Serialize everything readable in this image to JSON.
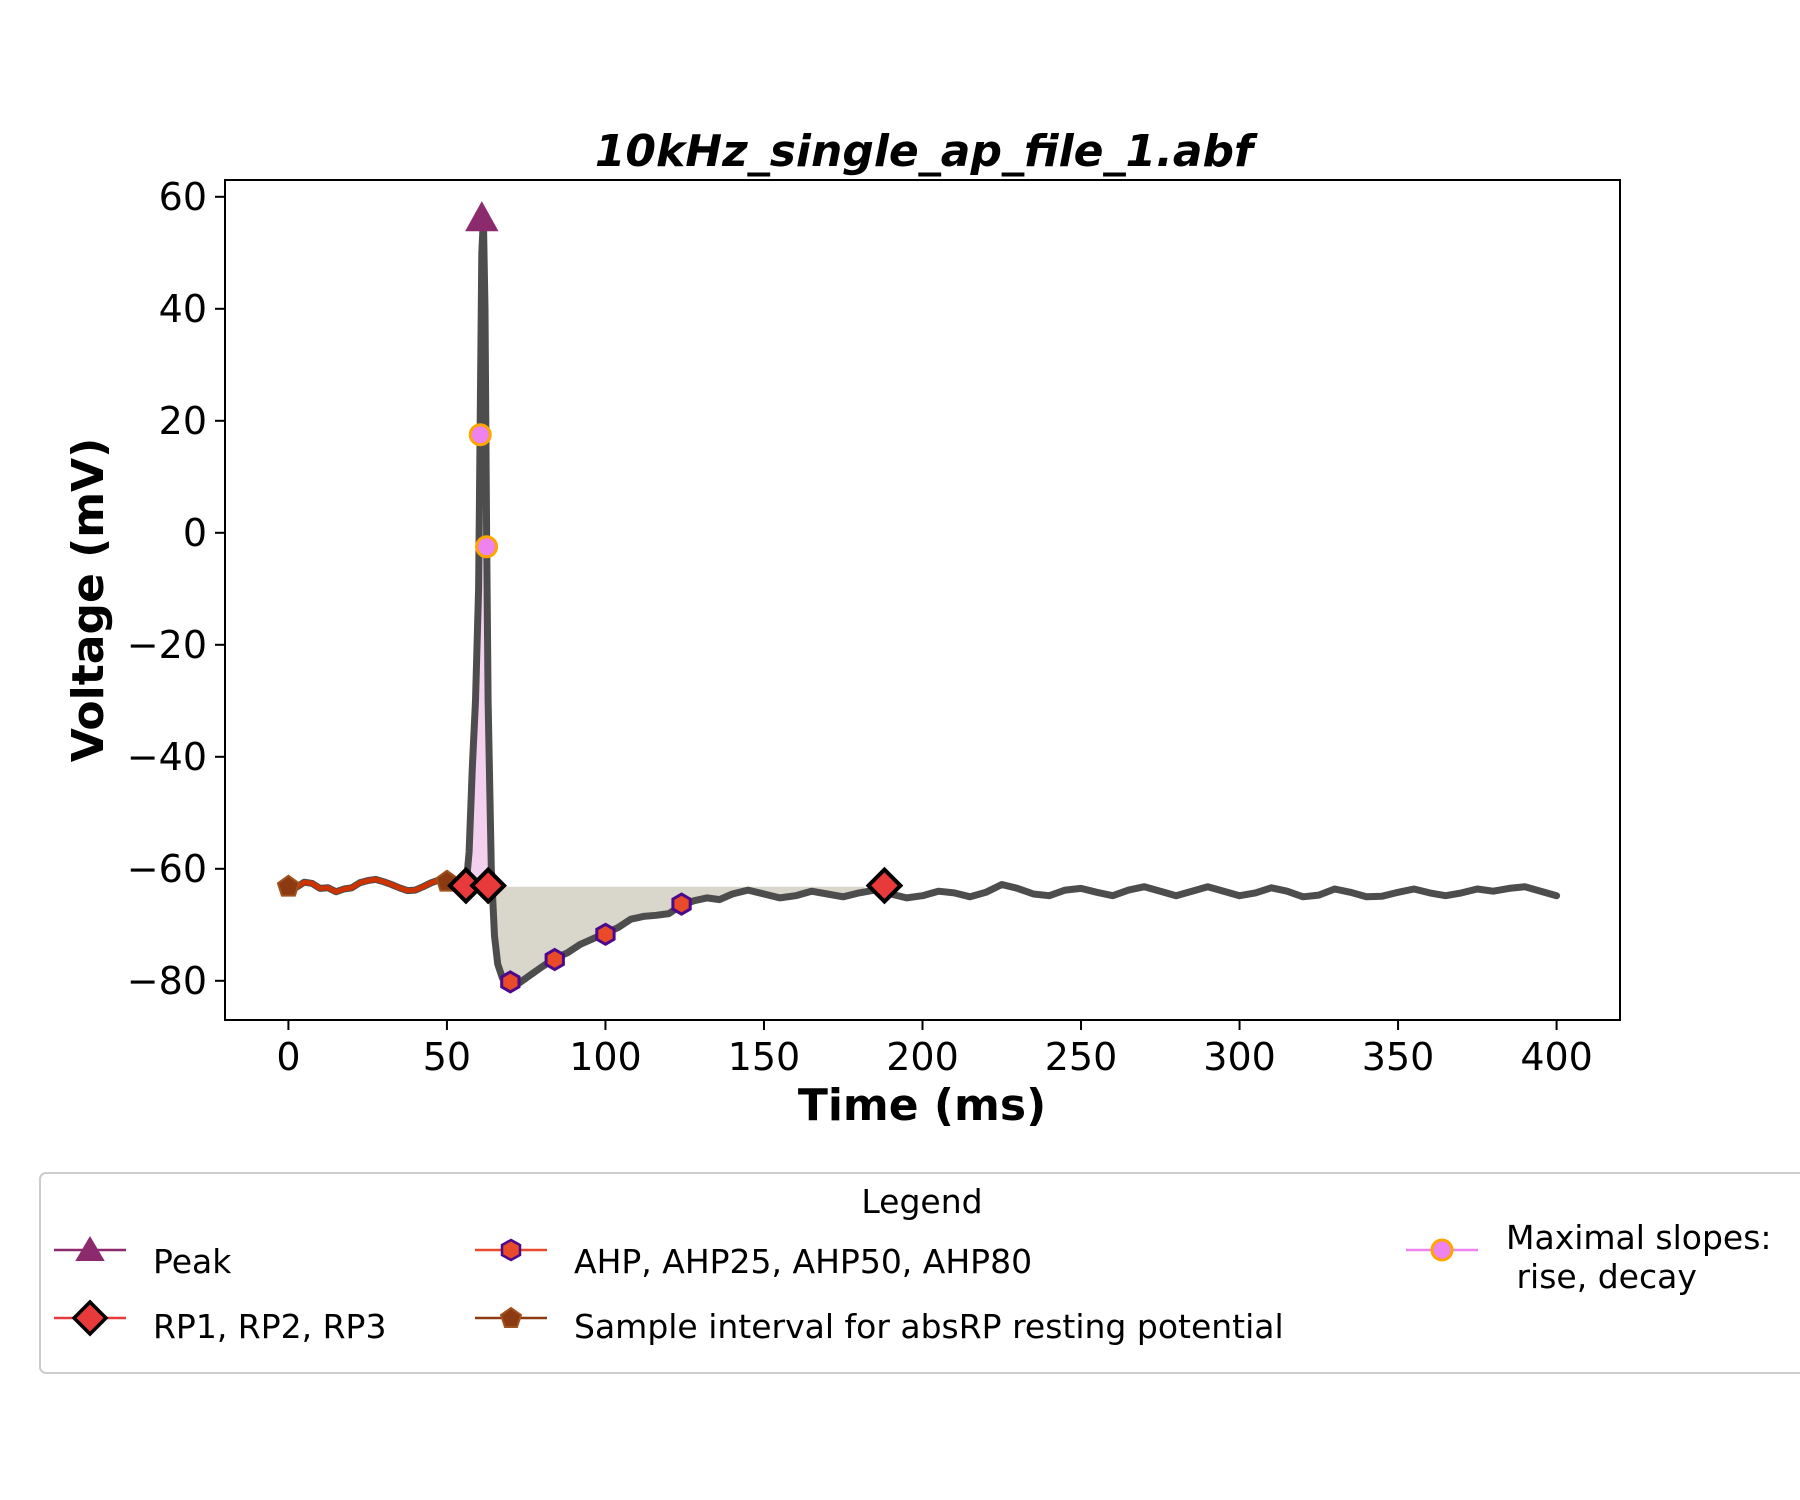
{
  "chart_data": {
    "type": "line",
    "title": "10kHz_single_ap_file_1.abf",
    "xlabel": "Time (ms)",
    "ylabel": "Voltage (mV)",
    "xlim": [
      -20,
      420
    ],
    "ylim": [
      -87,
      63
    ],
    "xticks": [
      0,
      50,
      100,
      150,
      200,
      250,
      300,
      350,
      400
    ],
    "yticks": [
      -80,
      -60,
      -40,
      -20,
      0,
      20,
      40,
      60
    ],
    "grid": false,
    "trace": {
      "color": "#4d4d4d",
      "points": [
        [
          0,
          -63.2
        ],
        [
          2.5,
          -63.3
        ],
        [
          5,
          -62.4
        ],
        [
          7.5,
          -62.6
        ],
        [
          10,
          -63.5
        ],
        [
          12.5,
          -63.4
        ],
        [
          15,
          -64.1
        ],
        [
          17.5,
          -63.6
        ],
        [
          20,
          -63.4
        ],
        [
          22.5,
          -62.5
        ],
        [
          25,
          -62.1
        ],
        [
          27.5,
          -61.9
        ],
        [
          30,
          -62.3
        ],
        [
          32.5,
          -62.8
        ],
        [
          35,
          -63.4
        ],
        [
          37.5,
          -63.9
        ],
        [
          40,
          -63.8
        ],
        [
          42.5,
          -63.2
        ],
        [
          45,
          -62.5
        ],
        [
          47.5,
          -62
        ],
        [
          50,
          -62.3
        ],
        [
          52.5,
          -62.8
        ],
        [
          55,
          -63.2
        ],
        [
          56,
          -63.2
        ],
        [
          57,
          -57
        ],
        [
          58,
          -42
        ],
        [
          59,
          -30
        ],
        [
          60,
          -10
        ],
        [
          60.5,
          20
        ],
        [
          61,
          50
        ],
        [
          61.5,
          56
        ],
        [
          62,
          40
        ],
        [
          62.5,
          0
        ],
        [
          63,
          -30
        ],
        [
          64,
          -60
        ],
        [
          65,
          -72
        ],
        [
          66,
          -77
        ],
        [
          67.5,
          -79.5
        ],
        [
          70,
          -80.5
        ],
        [
          72.5,
          -80.5
        ],
        [
          75,
          -79.5
        ],
        [
          77.5,
          -78.5
        ],
        [
          80,
          -77.5
        ],
        [
          84,
          -76
        ],
        [
          88,
          -75
        ],
        [
          92,
          -73.5
        ],
        [
          96,
          -72.5
        ],
        [
          100,
          -71.5
        ],
        [
          104,
          -70.5
        ],
        [
          108,
          -69
        ],
        [
          112,
          -68.5
        ],
        [
          116,
          -68.3
        ],
        [
          120,
          -68
        ],
        [
          124,
          -66.5
        ],
        [
          128,
          -65.7
        ],
        [
          132,
          -65.2
        ],
        [
          136,
          -65.5
        ],
        [
          140,
          -64.5
        ],
        [
          145,
          -63.8
        ],
        [
          150,
          -64.5
        ],
        [
          155,
          -65.2
        ],
        [
          160,
          -64.8
        ],
        [
          165,
          -64
        ],
        [
          170,
          -64.5
        ],
        [
          175,
          -65
        ],
        [
          180,
          -64.3
        ],
        [
          185,
          -63.8
        ],
        [
          190,
          -64.5
        ],
        [
          195,
          -65.2
        ],
        [
          200,
          -64.8
        ],
        [
          205,
          -64
        ],
        [
          210,
          -64.3
        ],
        [
          215,
          -65
        ],
        [
          220,
          -64.2
        ],
        [
          225,
          -62.8
        ],
        [
          230,
          -63.5
        ],
        [
          235,
          -64.5
        ],
        [
          240,
          -64.8
        ],
        [
          245,
          -63.8
        ],
        [
          250,
          -63.5
        ],
        [
          255,
          -64.2
        ],
        [
          260,
          -64.8
        ],
        [
          265,
          -63.8
        ],
        [
          270,
          -63.2
        ],
        [
          275,
          -64
        ],
        [
          280,
          -64.8
        ],
        [
          285,
          -64
        ],
        [
          290,
          -63.2
        ],
        [
          295,
          -64
        ],
        [
          300,
          -64.8
        ],
        [
          305,
          -64.3
        ],
        [
          310,
          -63.4
        ],
        [
          315,
          -64
        ],
        [
          320,
          -65
        ],
        [
          325,
          -64.7
        ],
        [
          330,
          -63.6
        ],
        [
          335,
          -64.2
        ],
        [
          340,
          -65
        ],
        [
          345,
          -64.9
        ],
        [
          350,
          -64.2
        ],
        [
          355,
          -63.6
        ],
        [
          360,
          -64.3
        ],
        [
          365,
          -64.8
        ],
        [
          370,
          -64.3
        ],
        [
          375,
          -63.6
        ],
        [
          380,
          -64
        ],
        [
          385,
          -63.5
        ],
        [
          390,
          -63.2
        ],
        [
          395,
          -64
        ],
        [
          400,
          -64.8
        ]
      ]
    },
    "resting_interval": {
      "color": "#cc3300",
      "x_start": 0,
      "x_end": 50
    },
    "ahp_fill": {
      "color": "#d9d6cc",
      "baseline": -63.2,
      "x_start": 63.5,
      "x_end": 182
    },
    "spike_fill": {
      "color": "#f3d1ee",
      "baseline": -63.2
    },
    "markers": {
      "peak": [
        [
          61,
          56
        ]
      ],
      "rp": [
        [
          56,
          -63
        ],
        [
          63,
          -63
        ],
        [
          188,
          -63
        ]
      ],
      "ahp": [
        [
          70,
          -80.2
        ],
        [
          84,
          -76.2
        ],
        [
          100,
          -71.7
        ],
        [
          124,
          -66.3
        ]
      ],
      "abs_rp_sample": [
        [
          0,
          -63.2
        ],
        [
          50,
          -62.3
        ]
      ],
      "max_slope": [
        [
          60.5,
          17.5
        ],
        [
          62.5,
          -2.5
        ]
      ]
    },
    "colors": {
      "peak": "#8c2a6e",
      "rp_fill": "#e83a3a",
      "rp_edge": "#000000",
      "ahp_fill": "#e84a2a",
      "ahp_edge": "#4b0a8c",
      "abs_rp": "#8b3a12",
      "slope_fill": "#ee82ee",
      "slope_edge": "#ffa500"
    },
    "legend": {
      "title": "Legend",
      "placement": "bottom",
      "entries": {
        "peak": "Peak",
        "rp": "RP1, RP2, RP3",
        "ahp": "AHP, AHP25, AHP50, AHP80",
        "abs_rp": "Sample interval for absRP resting potential",
        "slope_line1": "Maximal slopes:",
        "slope_line2": " rise, decay"
      }
    }
  }
}
